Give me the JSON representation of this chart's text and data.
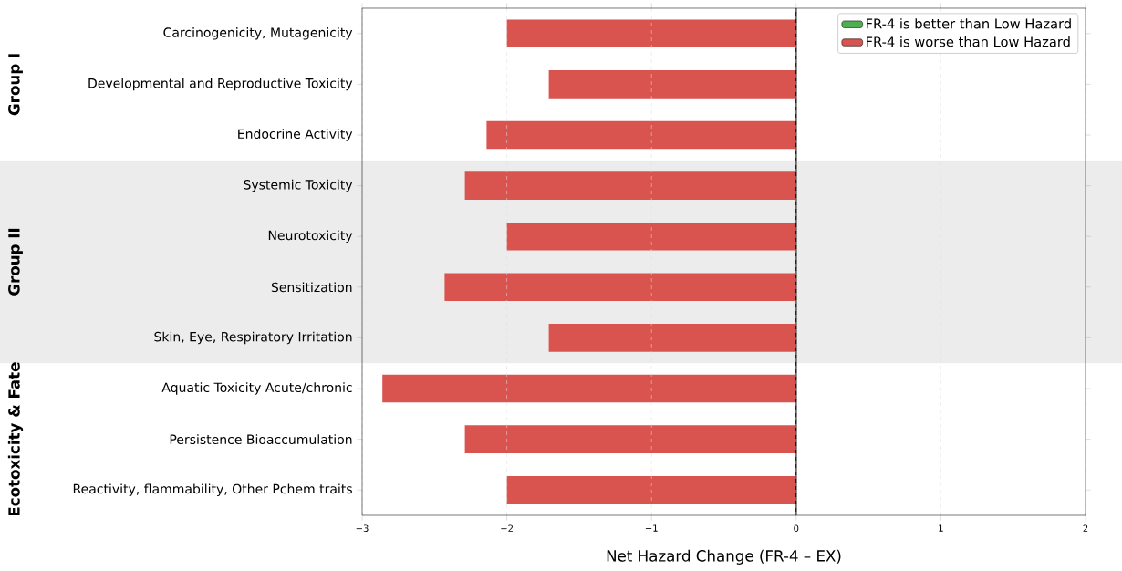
{
  "chart_data": {
    "type": "bar",
    "orientation": "horizontal",
    "categories": [
      "Carcinogenicity, Mutagenicity",
      "Developmental and Reproductive Toxicity",
      "Endocrine Activity",
      "Systemic Toxicity",
      "Neurotoxicity",
      "Sensitization",
      "Skin, Eye, Respiratory Irritation",
      "Aquatic Toxicity Acute/chronic",
      "Persistence Bioaccumulation",
      "Reactivity, flammability, Other Pchem traits"
    ],
    "series": [
      {
        "name": "FR-4 is better than Low Hazard",
        "color": "#4caf50",
        "values": [
          null,
          null,
          null,
          null,
          null,
          null,
          null,
          null,
          null,
          null
        ]
      },
      {
        "name": "FR-4 is worse than Low Hazard",
        "color": "#d9534f",
        "values": [
          -2.0,
          -1.71,
          -2.14,
          -2.29,
          -2.0,
          -2.43,
          -1.71,
          -2.86,
          -2.29,
          -2.0
        ]
      }
    ],
    "xlabel": "Net Hazard Change (FR-4 – EX)",
    "xlim": [
      -3,
      2
    ],
    "xticks": [
      {
        "value": -3,
        "label": "−3"
      },
      {
        "value": -2,
        "label": "−2"
      },
      {
        "value": -1,
        "label": "−1"
      },
      0,
      1,
      2
    ],
    "grid": "x",
    "legend": "top right",
    "ref_lines": [
      {
        "axis": "x",
        "value": 0,
        "color": "#000000"
      }
    ],
    "bands": [
      {
        "axis": "y",
        "from": "Systemic Toxicity",
        "to": "Skin, Eye, Respiratory Irritation",
        "label": "Group II",
        "color": "#ececec"
      }
    ],
    "annotations": [
      "Group I",
      "Ecotoxicity & Fate"
    ]
  }
}
